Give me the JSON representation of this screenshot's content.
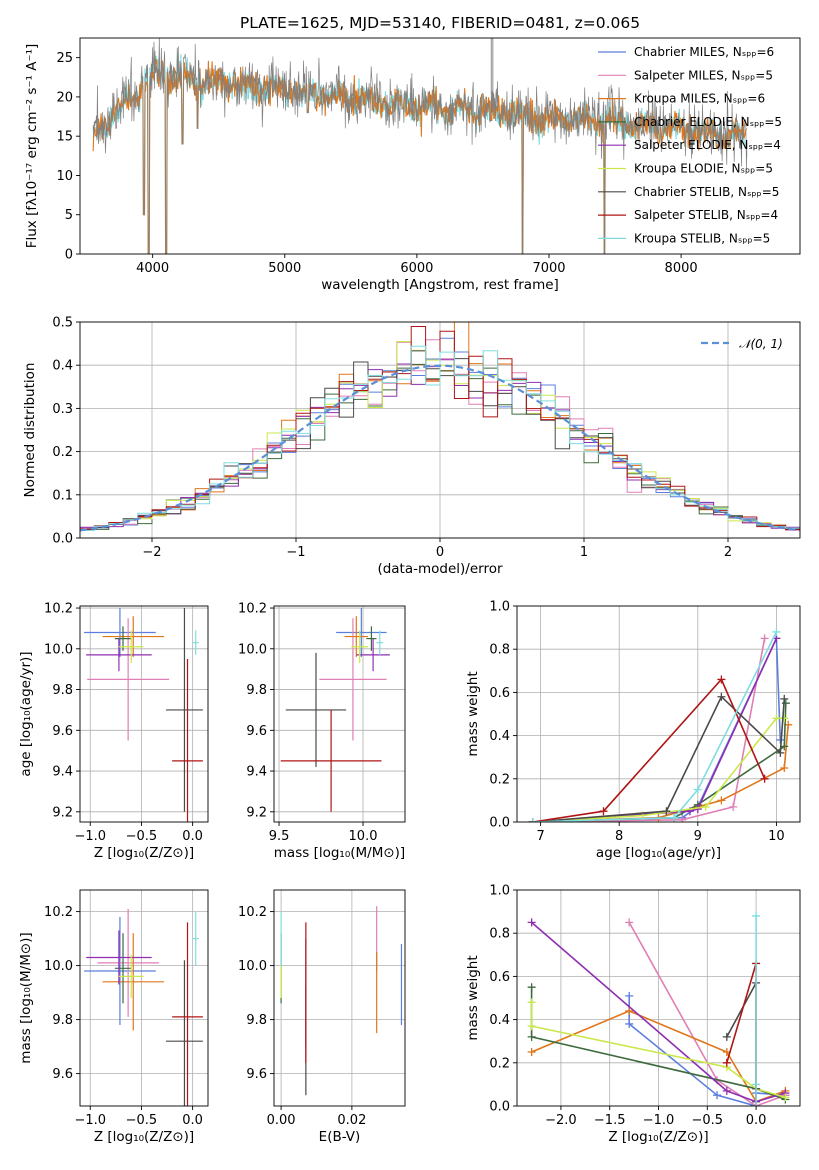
{
  "figure": {
    "title": "PLATE=1625, MJD=53140, FIBERID=0481, z=0.065"
  },
  "legend": [
    {
      "label": "Chabrier MILES, Nₛₚₚ=6",
      "color": "#5b7fde"
    },
    {
      "label": "Salpeter MILES, Nₛₚₚ=5",
      "color": "#e07fb5"
    },
    {
      "label": "Kroupa MILES, Nₛₚₚ=6",
      "color": "#e0761a"
    },
    {
      "label": "Chabrier ELODIE, Nₛₚₚ=5",
      "color": "#3d6b3d"
    },
    {
      "label": "Salpeter ELODIE, Nₛₚₚ=4",
      "color": "#8f2fb0"
    },
    {
      "label": "Kroupa ELODIE, Nₛₚₚ=5",
      "color": "#c9e84a"
    },
    {
      "label": "Chabrier STELIB, Nₛₚₚ=5",
      "color": "#4a4a4a"
    },
    {
      "label": "Salpeter STELIB, Nₛₚₚ=4",
      "color": "#b01515"
    },
    {
      "label": "Kroupa STELIB, Nₛₚₚ=5",
      "color": "#7fdde0"
    }
  ],
  "chart_data": [
    {
      "type": "line",
      "id": "spectrum",
      "xlabel": "wavelength [Angstrom, rest frame]",
      "ylabel": "Flux [fλ10⁻¹⁷ erg cm⁻² s⁻¹ A⁻¹]",
      "xlim": [
        3450,
        8900
      ],
      "ylim": [
        0,
        27.5
      ],
      "xticks": [
        4000,
        5000,
        6000,
        7000,
        8000
      ],
      "yticks": [
        0,
        5,
        10,
        15,
        20,
        25
      ],
      "data_color": "#808080",
      "model_colors": [
        "#7fdde0",
        "#e0761a"
      ],
      "continuum": [
        [
          3550,
          15
        ],
        [
          3700,
          18
        ],
        [
          3900,
          21
        ],
        [
          4000,
          23
        ],
        [
          4200,
          22.5
        ],
        [
          4500,
          22
        ],
        [
          5000,
          21
        ],
        [
          5500,
          20
        ],
        [
          6000,
          19
        ],
        [
          6500,
          18.5
        ],
        [
          7000,
          17.5
        ],
        [
          7500,
          17
        ],
        [
          8000,
          16
        ],
        [
          8500,
          15
        ]
      ],
      "absorption_lines": [
        [
          3934,
          5
        ],
        [
          3969,
          0
        ],
        [
          4102,
          0
        ],
        [
          4226,
          14
        ],
        [
          4340,
          16
        ],
        [
          5175,
          18
        ],
        [
          5893,
          18.5
        ],
        [
          6563,
          17
        ],
        [
          6800,
          0
        ],
        [
          7420,
          0
        ]
      ],
      "emission_spike": [
        6563,
        27.5
      ]
    },
    {
      "type": "histogram",
      "id": "residuals",
      "xlabel": "(data-model)/error",
      "ylabel": "Normed distribution",
      "xlim": [
        -2.5,
        2.5
      ],
      "ylim": [
        0,
        0.5
      ],
      "xticks": [
        -2,
        -1,
        0,
        1,
        2
      ],
      "yticks": [
        0.0,
        0.1,
        0.2,
        0.3,
        0.4,
        0.5
      ],
      "bin_width": 0.1,
      "reference": {
        "name": "𝒩(0, 1)",
        "mean": 0,
        "sigma": 1
      }
    },
    {
      "type": "scatter",
      "id": "age-vs-Z",
      "xlabel": "Z [log₁₀(Z/Z⊙)]",
      "ylabel": "age  [log₁₀(age/yr)]",
      "xlim": [
        -1.1,
        0.15
      ],
      "ylim": [
        9.15,
        10.21
      ],
      "xticks": [
        -1.0,
        -0.5,
        0.0
      ],
      "yticks": [
        9.2,
        9.4,
        9.6,
        9.8,
        10.0,
        10.2
      ],
      "points": [
        {
          "x": -0.71,
          "y": 10.08,
          "xerr": 0.35,
          "yerr": 0.12
        },
        {
          "x": -0.63,
          "y": 9.85,
          "xerr": 0.4,
          "yerr": 0.3
        },
        {
          "x": -0.58,
          "y": 10.06,
          "xerr": 0.3,
          "yerr": 0.1
        },
        {
          "x": -0.68,
          "y": 10.05,
          "xerr": 0.08,
          "yerr": 0.06
        },
        {
          "x": -0.72,
          "y": 9.97,
          "xerr": 0.32,
          "yerr": 0.08
        },
        {
          "x": -0.6,
          "y": 10.01,
          "xerr": 0.12,
          "yerr": 0.08
        },
        {
          "x": -0.08,
          "y": 9.7,
          "xerr": 0.18,
          "yerr": 0.5
        },
        {
          "x": -0.05,
          "y": 9.45,
          "xerr": 0.15,
          "yerr": 0.5
        },
        {
          "x": 0.03,
          "y": 10.03,
          "xerr": 0.03,
          "yerr": 0.06
        }
      ]
    },
    {
      "type": "scatter",
      "id": "age-vs-mass",
      "xlabel": "mass [log₁₀(M/M⊙)]",
      "ylabel": "",
      "xlim": [
        9.47,
        10.25
      ],
      "ylim": [
        9.15,
        10.21
      ],
      "xticks": [
        9.5,
        10.0
      ],
      "yticks": [
        9.2,
        9.4,
        9.6,
        9.8,
        10.0,
        10.2
      ],
      "points": [
        {
          "x": 9.99,
          "y": 10.08,
          "xerr": 0.15,
          "yerr": 0.12
        },
        {
          "x": 9.94,
          "y": 9.85,
          "xerr": 0.2,
          "yerr": 0.3
        },
        {
          "x": 9.96,
          "y": 10.06,
          "xerr": 0.07,
          "yerr": 0.1
        },
        {
          "x": 10.05,
          "y": 10.05,
          "xerr": 0.03,
          "yerr": 0.06
        },
        {
          "x": 10.06,
          "y": 9.97,
          "xerr": 0.1,
          "yerr": 0.08
        },
        {
          "x": 9.98,
          "y": 10.01,
          "xerr": 0.05,
          "yerr": 0.08
        },
        {
          "x": 9.72,
          "y": 9.7,
          "xerr": 0.18,
          "yerr": 0.28
        },
        {
          "x": 9.81,
          "y": 9.45,
          "xerr": 0.3,
          "yerr": 0.25
        },
        {
          "x": 10.1,
          "y": 10.03,
          "xerr": 0.02,
          "yerr": 0.06
        }
      ]
    },
    {
      "type": "line",
      "id": "weight-vs-age",
      "xlabel": "age  [log₁₀(age/yr)]",
      "ylabel": "mass weight",
      "xlim": [
        6.7,
        10.3
      ],
      "ylim": [
        0,
        1.0
      ],
      "xticks": [
        7,
        8,
        9,
        10
      ],
      "yticks": [
        0.0,
        0.2,
        0.4,
        0.6,
        0.8,
        1.0
      ],
      "series": [
        {
          "x": [
            6.9,
            8.8,
            9.0,
            10.0,
            10.05
          ],
          "y": [
            0.0,
            0.02,
            0.07,
            0.85,
            0.38
          ]
        },
        {
          "x": [
            6.9,
            8.8,
            9.45,
            9.85
          ],
          "y": [
            0.0,
            0.01,
            0.07,
            0.85
          ]
        },
        {
          "x": [
            6.9,
            8.5,
            9.3,
            10.1,
            10.15
          ],
          "y": [
            0.0,
            0.02,
            0.1,
            0.25,
            0.45
          ]
        },
        {
          "x": [
            6.9,
            8.7,
            9.0,
            10.1,
            10.12
          ],
          "y": [
            0.0,
            0.02,
            0.08,
            0.35,
            0.55
          ]
        },
        {
          "x": [
            6.9,
            8.9,
            9.0,
            10.0
          ],
          "y": [
            0.0,
            0.05,
            0.06,
            0.85
          ]
        },
        {
          "x": [
            6.9,
            8.3,
            9.1,
            10.0,
            10.1
          ],
          "y": [
            0.0,
            0.03,
            0.07,
            0.48,
            0.48
          ]
        },
        {
          "x": [
            6.9,
            8.6,
            9.3,
            10.05,
            10.1
          ],
          "y": [
            0.0,
            0.05,
            0.58,
            0.32,
            0.57
          ]
        },
        {
          "x": [
            6.9,
            7.8,
            9.3,
            9.85
          ],
          "y": [
            0.0,
            0.05,
            0.66,
            0.2
          ]
        },
        {
          "x": [
            6.9,
            8.7,
            9.0,
            10.0
          ],
          "y": [
            0.0,
            0.02,
            0.15,
            0.88
          ]
        }
      ]
    },
    {
      "type": "scatter",
      "id": "mass-vs-Z",
      "xlabel": "Z [log₁₀(Z/Z⊙)]",
      "ylabel": "mass [log₁₀(M/M⊙)]",
      "xlim": [
        -1.1,
        0.15
      ],
      "ylim": [
        9.48,
        10.28
      ],
      "xticks": [
        -1.0,
        -0.5,
        0.0
      ],
      "yticks": [
        9.6,
        9.8,
        10.0,
        10.2
      ],
      "points": [
        {
          "x": -0.71,
          "y": 9.98,
          "xerr": 0.35,
          "yerr": 0.2
        },
        {
          "x": -0.63,
          "y": 10.01,
          "xerr": 0.3,
          "yerr": 0.2
        },
        {
          "x": -0.58,
          "y": 9.94,
          "xerr": 0.3,
          "yerr": 0.18
        },
        {
          "x": -0.68,
          "y": 9.99,
          "xerr": 0.08,
          "yerr": 0.13
        },
        {
          "x": -0.72,
          "y": 10.03,
          "xerr": 0.32,
          "yerr": 0.1
        },
        {
          "x": -0.6,
          "y": 9.96,
          "xerr": 0.12,
          "yerr": 0.08
        },
        {
          "x": -0.08,
          "y": 9.72,
          "xerr": 0.18,
          "yerr": 0.3
        },
        {
          "x": -0.05,
          "y": 9.81,
          "xerr": 0.15,
          "yerr": 0.35
        },
        {
          "x": 0.03,
          "y": 10.1,
          "xerr": 0.03,
          "yerr": 0.1
        }
      ]
    },
    {
      "type": "scatter",
      "id": "mass-vs-EBV",
      "xlabel": "E(B-V)",
      "ylabel": "",
      "xlim": [
        -0.002,
        0.035
      ],
      "ylim": [
        9.48,
        10.28
      ],
      "xticks": [
        0.0,
        0.02
      ],
      "tick_labels": [
        "0.00",
        "0.02"
      ],
      "yticks": [
        9.6,
        9.8,
        10.0,
        10.2
      ],
      "points": [
        {
          "x": 0.034,
          "y": 9.93,
          "xerr": 0.0,
          "yerr": 0.15
        },
        {
          "x": 0.027,
          "y": 10.1,
          "xerr": 0.0,
          "yerr": 0.12
        },
        {
          "x": 0.027,
          "y": 9.9,
          "xerr": 0.0,
          "yerr": 0.15
        },
        {
          "x": 0.0,
          "y": 9.99,
          "xerr": 0.0,
          "yerr": 0.13
        },
        {
          "x": 0.007,
          "y": 9.9,
          "xerr": 0.0,
          "yerr": 0.2
        },
        {
          "x": 0.0,
          "y": 9.96,
          "xerr": 0.0,
          "yerr": 0.08
        },
        {
          "x": 0.007,
          "y": 9.72,
          "xerr": 0.0,
          "yerr": 0.2
        },
        {
          "x": 0.007,
          "y": 9.9,
          "xerr": 0.0,
          "yerr": 0.26
        },
        {
          "x": 0.0,
          "y": 10.1,
          "xerr": 0.0,
          "yerr": 0.1
        }
      ]
    },
    {
      "type": "line",
      "id": "weight-vs-Z",
      "xlabel": "Z [log₁₀(Z/Z⊙)]",
      "ylabel": "mass weight",
      "xlim": [
        -2.45,
        0.45
      ],
      "ylim": [
        0,
        1.0
      ],
      "xticks": [
        -2.0,
        -1.5,
        -1.0,
        -0.5,
        0.0
      ],
      "yticks": [
        0.0,
        0.2,
        0.4,
        0.6,
        0.8,
        1.0
      ],
      "series": [
        {
          "x": [
            -1.3,
            -1.3,
            -0.4,
            -0.0,
            0.0,
            0.3
          ],
          "y": [
            0.51,
            0.38,
            0.05,
            0.0,
            0.06,
            0.05
          ]
        },
        {
          "x": [
            -1.3,
            -0.4,
            0.0,
            0.3
          ],
          "y": [
            0.85,
            0.12,
            0.0,
            0.05
          ]
        },
        {
          "x": [
            -2.3,
            -1.3,
            -0.3,
            0.0,
            0.3
          ],
          "y": [
            0.25,
            0.44,
            0.25,
            0.02,
            0.07
          ]
        },
        {
          "x": [
            -2.3,
            -2.3,
            0.0,
            0.3
          ],
          "y": [
            0.55,
            0.32,
            0.08,
            0.03
          ]
        },
        {
          "x": [
            -2.3,
            -0.3,
            0.0,
            0.3
          ],
          "y": [
            0.85,
            0.07,
            0.02,
            0.06
          ]
        },
        {
          "x": [
            -2.3,
            -2.3,
            -0.3,
            0.0,
            0.3
          ],
          "y": [
            0.48,
            0.37,
            0.18,
            0.08,
            0.04
          ]
        },
        {
          "x": [
            -0.3,
            0.0,
            0.0
          ],
          "y": [
            0.32,
            0.57,
            0.08
          ]
        },
        {
          "x": [
            -0.3,
            0.0,
            0.0
          ],
          "y": [
            0.2,
            0.66,
            0.0
          ]
        },
        {
          "x": [
            0.0,
            0.0,
            0.0
          ],
          "y": [
            0.88,
            0.1,
            0.0
          ]
        }
      ]
    }
  ]
}
